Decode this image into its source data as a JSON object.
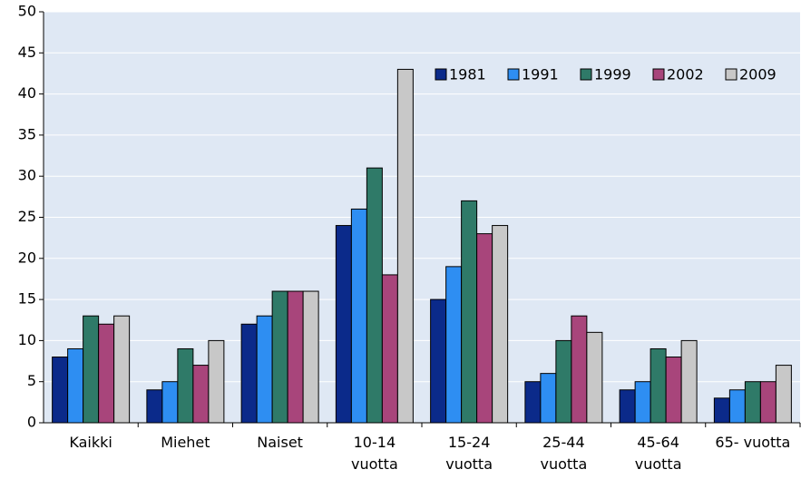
{
  "chart_data": {
    "type": "bar",
    "categories": [
      "Kaikki",
      "Miehet",
      "Naiset",
      "10-14 vuotta",
      "15-24 vuotta",
      "25-44 vuotta",
      "45-64 vuotta",
      "65- vuotta"
    ],
    "series": [
      {
        "name": "1981",
        "color": "#0b2a8a",
        "values": [
          8,
          4,
          12,
          24,
          15,
          5,
          4,
          3
        ]
      },
      {
        "name": "1991",
        "color": "#2e8ef2",
        "values": [
          9,
          5,
          13,
          26,
          19,
          6,
          5,
          4
        ]
      },
      {
        "name": "1999",
        "color": "#2f7a68",
        "values": [
          13,
          9,
          16,
          31,
          27,
          10,
          9,
          5
        ]
      },
      {
        "name": "2002",
        "color": "#a8457b",
        "values": [
          12,
          7,
          16,
          18,
          23,
          13,
          8,
          5
        ]
      },
      {
        "name": "2009",
        "color": "#c8c8c8",
        "values": [
          13,
          10,
          16,
          43,
          24,
          11,
          10,
          7
        ]
      }
    ],
    "ylim": [
      0,
      50
    ],
    "yticks": [
      0,
      5,
      10,
      15,
      20,
      25,
      30,
      35,
      40,
      45,
      50
    ],
    "grid": true,
    "legend": "top-right"
  }
}
